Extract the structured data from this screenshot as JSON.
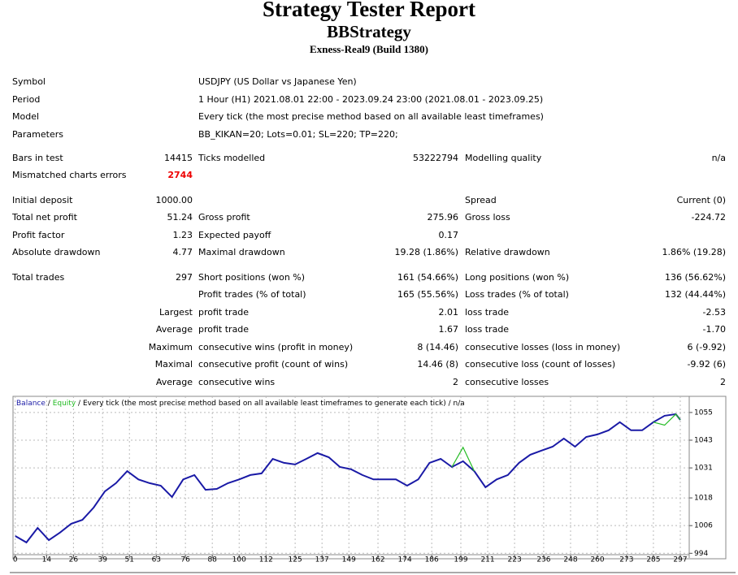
{
  "header": {
    "title": "Strategy Tester Report",
    "subtitle": "BBStrategy",
    "server": "Exness-Real9 (Build 1380)"
  },
  "info": [
    [
      "Symbol",
      "USDJPY (US Dollar vs Japanese Yen)"
    ],
    [
      "Period",
      "1 Hour (H1) 2021.08.01 22:00 - 2023.09.24 23:00 (2021.08.01 - 2023.09.25)"
    ],
    [
      "Model",
      "Every tick (the most precise method based on all available least timeframes)"
    ],
    [
      "Parameters",
      "BB_KIKAN=20; Lots=0.01; SL=220; TP=220;"
    ]
  ],
  "stats": [
    [
      [
        "Bars in test",
        "14415",
        "Ticks modelled",
        "53222794",
        "Modelling quality",
        "n/a"
      ],
      [
        "Mismatched charts errors",
        "2744",
        null,
        null,
        null,
        null
      ]
    ],
    [
      [
        "Initial deposit",
        "1000.00",
        null,
        null,
        "Spread",
        "Current (0)"
      ],
      [
        "Total net profit",
        "51.24",
        "Gross profit",
        "275.96",
        "Gross loss",
        "-224.72"
      ],
      [
        "Profit factor",
        "1.23",
        "Expected payoff",
        "0.17",
        null,
        null
      ],
      [
        "Absolute drawdown",
        "4.77",
        "Maximal drawdown",
        "19.28 (1.86%)",
        "Relative drawdown",
        "1.86% (19.28)"
      ]
    ],
    [
      [
        "Total trades",
        "297",
        "Short positions (won %)",
        "161 (54.66%)",
        "Long positions (won %)",
        "136 (56.62%)"
      ],
      [
        null,
        null,
        "Profit trades (% of total)",
        "165 (55.56%)",
        "Loss trades (% of total)",
        "132 (44.44%)"
      ],
      [
        null,
        "Largest",
        "profit trade",
        "2.01",
        "loss trade",
        "-2.53"
      ],
      [
        null,
        "Average",
        "profit trade",
        "1.67",
        "loss trade",
        "-1.70"
      ],
      [
        null,
        "Maximum",
        "consecutive wins (profit in money)",
        "8 (14.46)",
        "consecutive losses (loss in money)",
        "6 (-9.92)"
      ],
      [
        null,
        "Maximal",
        "consecutive profit (count of wins)",
        "14.46 (8)",
        "consecutive loss (count of losses)",
        "-9.92 (6)"
      ],
      [
        null,
        "Average",
        "consecutive wins",
        "2",
        "consecutive losses",
        "2"
      ]
    ]
  ],
  "chart_data": {
    "type": "line",
    "legend": [
      "Balance",
      "/",
      "Equity",
      "/ Every tick (the most precise method based on all available least timeframes to generate each tick) / n/a"
    ],
    "x": [
      0,
      5,
      10,
      15,
      20,
      25,
      30,
      35,
      40,
      45,
      50,
      55,
      60,
      65,
      70,
      75,
      80,
      85,
      90,
      95,
      100,
      105,
      110,
      115,
      120,
      125,
      130,
      135,
      140,
      145,
      150,
      155,
      160,
      165,
      170,
      175,
      180,
      185,
      190,
      195,
      200,
      205,
      210,
      215,
      220,
      225,
      230,
      235,
      240,
      245,
      250,
      255,
      260,
      265,
      270,
      275,
      280,
      285,
      290,
      295,
      297
    ],
    "series": [
      {
        "name": "Balance",
        "color": "#1a1aa6",
        "values": [
          1001.5,
          998.7,
          1005,
          999.7,
          1003,
          1006.8,
          1008.5,
          1013.8,
          1020.8,
          1024.4,
          1029.6,
          1026,
          1024.4,
          1023.3,
          1018.4,
          1026,
          1027.9,
          1021.5,
          1021.9,
          1024.4,
          1026,
          1027.9,
          1028.6,
          1034.9,
          1033.2,
          1032.5,
          1034.9,
          1037.4,
          1035.6,
          1031.4,
          1030.4,
          1027.9,
          1026,
          1026,
          1026,
          1023.3,
          1026,
          1033.2,
          1034.9,
          1031.4,
          1033.9,
          1029.6,
          1022.6,
          1026,
          1027.9,
          1033.2,
          1036.7,
          1038.5,
          1040.2,
          1043.7,
          1040.2,
          1044.4,
          1045.5,
          1047.3,
          1050.8,
          1047.3,
          1047.3,
          1050.8,
          1053.6,
          1054.3,
          1051.8
        ]
      },
      {
        "name": "Equity",
        "color": "#22bb22",
        "values": [
          null,
          null,
          null,
          null,
          null,
          null,
          null,
          null,
          null,
          null,
          null,
          null,
          null,
          null,
          null,
          null,
          null,
          null,
          null,
          null,
          null,
          null,
          null,
          null,
          null,
          null,
          null,
          null,
          null,
          null,
          null,
          null,
          null,
          null,
          null,
          null,
          null,
          null,
          null,
          1031.4,
          1039.9,
          1029.6,
          null,
          null,
          null,
          null,
          null,
          null,
          null,
          null,
          null,
          null,
          null,
          null,
          null,
          null,
          null,
          1050.8,
          1049.5,
          1054.3,
          1051.8
        ]
      }
    ],
    "xlim": [
      -1,
      301
    ],
    "xticks": [
      0,
      14,
      26,
      39,
      51,
      63,
      76,
      88,
      100,
      112,
      125,
      137,
      149,
      162,
      174,
      186,
      199,
      211,
      223,
      236,
      248,
      260,
      273,
      285,
      297
    ],
    "ylim": [
      993.4,
      1062
    ],
    "yticks": [
      994,
      1006,
      1018,
      1031,
      1043,
      1055
    ],
    "grid": true
  }
}
